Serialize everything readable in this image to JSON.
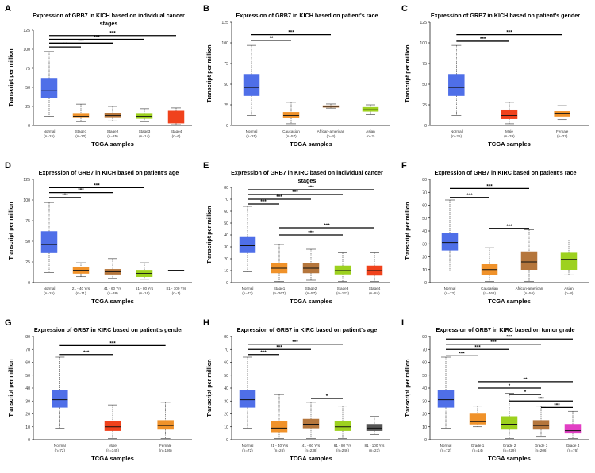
{
  "figure": {
    "colors": {
      "Normal": "#4f6fe8",
      "Stage1": "#f0922a",
      "Stage2": "#b5763c",
      "Stage3": "#9dd11f",
      "Stage4": "#f0421c",
      "Caucasian": "#f0922a",
      "African-american": "#b5763c",
      "Asian": "#9dd11f",
      "Male": "#f0421c",
      "Female": "#f0922a",
      "21 - 40 Yrs": "#f0922a",
      "41 - 60 Yrs": "#b5763c",
      "61 - 80 Yrs": "#9dd11f",
      "81 - 100 Yrs": "#555555",
      "Grade 1": "#f0922a",
      "Grade 2": "#9dd11f",
      "Grade 3": "#b5763c",
      "Grade 4": "#e23fc4"
    }
  },
  "chart_data": [
    {
      "type": "box",
      "letter": "A",
      "title": [
        "Expression of GRB7 in KICH based on individual cancer",
        "stages"
      ],
      "xlabel": "TCGA samples",
      "ylabel": "Transcript per million",
      "ylim": [
        0,
        125
      ],
      "yticks": [
        0,
        25,
        50,
        75,
        100,
        125
      ],
      "groups": [
        {
          "label": "Normal",
          "n": "(n=25)",
          "key": "Normal",
          "min": 12,
          "q1": 36,
          "median": 46,
          "q3": 62,
          "max": 97
        },
        {
          "label": "Stage1",
          "n": "(n=20)",
          "key": "Stage1",
          "min": 5,
          "q1": 10,
          "median": 12,
          "q3": 15,
          "max": 28
        },
        {
          "label": "Stage2",
          "n": "(n=25)",
          "key": "Stage2",
          "min": 6,
          "q1": 10,
          "median": 13,
          "q3": 16,
          "max": 25
        },
        {
          "label": "Stage3",
          "n": "(n=14)",
          "key": "Stage3",
          "min": 5,
          "q1": 9,
          "median": 12,
          "q3": 15,
          "max": 22
        },
        {
          "label": "Stage4",
          "n": "(n=6)",
          "key": "Stage4",
          "min": 1,
          "q1": 3,
          "median": 11,
          "q3": 19,
          "max": 23
        }
      ],
      "significance": [
        {
          "from": 0,
          "to": 1,
          "label": "**",
          "y": 103
        },
        {
          "from": 0,
          "to": 2,
          "label": "***",
          "y": 108
        },
        {
          "from": 0,
          "to": 3,
          "label": "***",
          "y": 113
        },
        {
          "from": 0,
          "to": 4,
          "label": "***",
          "y": 118
        }
      ]
    },
    {
      "type": "box",
      "letter": "B",
      "title": [
        "Expression of GRB7 in KICH based on patient's race"
      ],
      "xlabel": "TCGA samples",
      "ylabel": "Transcript per million",
      "ylim": [
        0,
        125
      ],
      "yticks": [
        0,
        25,
        50,
        75,
        100,
        125
      ],
      "groups": [
        {
          "label": "Normal",
          "n": "(n=25)",
          "key": "Normal",
          "min": 12,
          "q1": 36,
          "median": 46,
          "q3": 62,
          "max": 97
        },
        {
          "label": "Caucasian",
          "n": "(n=57)",
          "key": "Caucasian",
          "min": 2,
          "q1": 9,
          "median": 12,
          "q3": 16,
          "max": 28
        },
        {
          "label": "African-american",
          "n": "(n=4)",
          "key": "African-american",
          "min": 21,
          "q1": 22,
          "median": 23,
          "q3": 24,
          "max": 26
        },
        {
          "label": "Asian",
          "n": "(n=2)",
          "key": "Asian",
          "min": 13,
          "q1": 17,
          "median": 19,
          "q3": 22,
          "max": 25
        }
      ],
      "significance": [
        {
          "from": 0,
          "to": 1,
          "label": "**",
          "y": 103
        },
        {
          "from": 0,
          "to": 2,
          "label": "***",
          "y": 110
        }
      ]
    },
    {
      "type": "box",
      "letter": "C",
      "title": [
        "Expression of GRB7 in KICH based on patient's gender"
      ],
      "xlabel": "TCGA samples",
      "ylabel": "Transcript per million",
      "ylim": [
        0,
        125
      ],
      "yticks": [
        0,
        25,
        50,
        75,
        100,
        125
      ],
      "groups": [
        {
          "label": "Normal",
          "n": "(n=25)",
          "key": "Normal",
          "min": 12,
          "q1": 36,
          "median": 46,
          "q3": 62,
          "max": 97
        },
        {
          "label": "Male",
          "n": "(n=39)",
          "key": "Male",
          "min": 2,
          "q1": 8,
          "median": 12,
          "q3": 19,
          "max": 28
        },
        {
          "label": "Female",
          "n": "(n=27)",
          "key": "Female",
          "min": 7,
          "q1": 11,
          "median": 14,
          "q3": 17,
          "max": 24
        }
      ],
      "significance": [
        {
          "from": 0,
          "to": 1,
          "label": "***",
          "y": 102
        },
        {
          "from": 0,
          "to": 2,
          "label": "***",
          "y": 110
        }
      ]
    },
    {
      "type": "box",
      "letter": "D",
      "title": [
        "Expression of GRB7 in KICH based on patient's age"
      ],
      "xlabel": "TCGA samples",
      "ylabel": "Transcript per million",
      "ylim": [
        0,
        125
      ],
      "yticks": [
        0,
        25,
        50,
        75,
        100,
        125
      ],
      "groups": [
        {
          "label": "Normal",
          "n": "(n=25)",
          "key": "Normal",
          "min": 12,
          "q1": 36,
          "median": 46,
          "q3": 62,
          "max": 97
        },
        {
          "label": "21 - 40 Yrs",
          "n": "(n=11)",
          "key": "21 - 40 Yrs",
          "min": 7,
          "q1": 11,
          "median": 15,
          "q3": 19,
          "max": 24
        },
        {
          "label": "41 - 60 Yrs",
          "n": "(n=38)",
          "key": "41 - 60 Yrs",
          "min": 5,
          "q1": 10,
          "median": 13,
          "q3": 16,
          "max": 29
        },
        {
          "label": "61 - 80 Yrs",
          "n": "(n=16)",
          "key": "61 - 80 Yrs",
          "min": 4,
          "q1": 7,
          "median": 11,
          "q3": 15,
          "max": 24
        },
        {
          "label": "81 - 100 Yrs",
          "n": "(n=1)",
          "key": "81 - 100 Yrs",
          "min": 15,
          "q1": 15,
          "median": 15,
          "q3": 15,
          "max": 15
        }
      ],
      "significance": [
        {
          "from": 0,
          "to": 1,
          "label": "***",
          "y": 103
        },
        {
          "from": 0,
          "to": 2,
          "label": "***",
          "y": 109
        },
        {
          "from": 0,
          "to": 3,
          "label": "***",
          "y": 115
        }
      ]
    },
    {
      "type": "box",
      "letter": "E",
      "title": [
        "Expression of GRB7 in KIRC based on individual cancer",
        "stages"
      ],
      "xlabel": "TCGA samples",
      "ylabel": "Transcript per million",
      "ylim": [
        0,
        80
      ],
      "yticks": [
        0,
        10,
        20,
        30,
        40,
        50,
        60,
        70,
        80
      ],
      "groups": [
        {
          "label": "Normal",
          "n": "(n=72)",
          "key": "Normal",
          "min": 9,
          "q1": 25,
          "median": 31,
          "q3": 38,
          "max": 64
        },
        {
          "label": "Stage1",
          "n": "(n=267)",
          "key": "Stage1",
          "min": 1,
          "q1": 8,
          "median": 12,
          "q3": 16,
          "max": 32
        },
        {
          "label": "Stage2",
          "n": "(n=57)",
          "key": "Stage2",
          "min": 2,
          "q1": 8,
          "median": 12,
          "q3": 16,
          "max": 28
        },
        {
          "label": "Stage3",
          "n": "(n=123)",
          "key": "Stage3",
          "min": 1,
          "q1": 7,
          "median": 10,
          "q3": 14,
          "max": 25
        },
        {
          "label": "Stage4",
          "n": "(n=84)",
          "key": "Stage4",
          "min": 1,
          "q1": 6,
          "median": 10,
          "q3": 14,
          "max": 25
        }
      ],
      "significance": [
        {
          "from": 0,
          "to": 1,
          "label": "***",
          "y": 66
        },
        {
          "from": 0,
          "to": 2,
          "label": "***",
          "y": 70
        },
        {
          "from": 0,
          "to": 3,
          "label": "***",
          "y": 74
        },
        {
          "from": 0,
          "to": 4,
          "label": "***",
          "y": 78
        },
        {
          "from": 1,
          "to": 3,
          "label": "***",
          "y": 40
        },
        {
          "from": 1,
          "to": 4,
          "label": "***",
          "y": 46
        }
      ]
    },
    {
      "type": "box",
      "letter": "F",
      "title": [
        "Expression of GRB7 in KIRC based on patient's race"
      ],
      "xlabel": "TCGA samples",
      "ylabel": "Transcript per million",
      "ylim": [
        0,
        80
      ],
      "yticks": [
        0,
        10,
        20,
        30,
        40,
        50,
        60,
        70,
        80
      ],
      "groups": [
        {
          "label": "Normal",
          "n": "(n=72)",
          "key": "Normal",
          "min": 9,
          "q1": 25,
          "median": 31,
          "q3": 38,
          "max": 64
        },
        {
          "label": "Caucasian",
          "n": "(n=462)",
          "key": "Caucasian",
          "min": 1,
          "q1": 6,
          "median": 10,
          "q3": 14,
          "max": 27
        },
        {
          "label": "African-american",
          "n": "(n=56)",
          "key": "African-american",
          "min": 1,
          "q1": 10,
          "median": 16,
          "q3": 24,
          "max": 41
        },
        {
          "label": "Asian",
          "n": "(n=8)",
          "key": "Asian",
          "min": 6,
          "q1": 10,
          "median": 18,
          "q3": 23,
          "max": 33
        }
      ],
      "significance": [
        {
          "from": 0,
          "to": 1,
          "label": "***",
          "y": 66
        },
        {
          "from": 0,
          "to": 2,
          "label": "***",
          "y": 73
        },
        {
          "from": 1,
          "to": 2,
          "label": "***",
          "y": 42
        }
      ]
    },
    {
      "type": "box",
      "letter": "G",
      "title": [
        "Expression of GRB7 in KIRC based on patient's gender"
      ],
      "xlabel": "TCGA samples",
      "ylabel": "Transcript per million",
      "ylim": [
        0,
        80
      ],
      "yticks": [
        0,
        10,
        20,
        30,
        40,
        50,
        60,
        70,
        80
      ],
      "groups": [
        {
          "label": "Normal",
          "n": "(n=72)",
          "key": "Normal",
          "min": 9,
          "q1": 25,
          "median": 31,
          "q3": 38,
          "max": 64
        },
        {
          "label": "Male",
          "n": "(n=345)",
          "key": "Male",
          "min": 1,
          "q1": 7,
          "median": 10,
          "q3": 14,
          "max": 27
        },
        {
          "label": "Female",
          "n": "(n=186)",
          "key": "Female",
          "min": 1,
          "q1": 8,
          "median": 11,
          "q3": 15,
          "max": 29
        }
      ],
      "significance": [
        {
          "from": 0,
          "to": 1,
          "label": "***",
          "y": 66
        },
        {
          "from": 0,
          "to": 2,
          "label": "***",
          "y": 73
        }
      ]
    },
    {
      "type": "box",
      "letter": "H",
      "title": [
        "Expression of GRB7 in KIRC based on patient's age"
      ],
      "xlabel": "TCGA samples",
      "ylabel": "Transcript per million",
      "ylim": [
        0,
        80
      ],
      "yticks": [
        0,
        10,
        20,
        30,
        40,
        50,
        60,
        70,
        80
      ],
      "groups": [
        {
          "label": "Normal",
          "n": "(n=72)",
          "key": "Normal",
          "min": 9,
          "q1": 25,
          "median": 31,
          "q3": 38,
          "max": 64
        },
        {
          "label": "21 - 40 Yrs",
          "n": "(n=26)",
          "key": "21 - 40 Yrs",
          "min": 1,
          "q1": 6,
          "median": 9,
          "q3": 14,
          "max": 35
        },
        {
          "label": "41 - 60 Yrs",
          "n": "(n=238)",
          "key": "41 - 60 Yrs",
          "min": 1,
          "q1": 9,
          "median": 12,
          "q3": 16,
          "max": 29
        },
        {
          "label": "61 - 80 Yrs",
          "n": "(n=246)",
          "key": "61 - 80 Yrs",
          "min": 1,
          "q1": 7,
          "median": 10,
          "q3": 14,
          "max": 26
        },
        {
          "label": "81 - 100 Yrs",
          "n": "(n=23)",
          "key": "81 - 100 Yrs",
          "min": 4,
          "q1": 7,
          "median": 9,
          "q3": 12,
          "max": 18
        }
      ],
      "significance": [
        {
          "from": 0,
          "to": 1,
          "label": "***",
          "y": 66
        },
        {
          "from": 0,
          "to": 2,
          "label": "***",
          "y": 70
        },
        {
          "from": 0,
          "to": 3,
          "label": "***",
          "y": 74
        },
        {
          "from": 2,
          "to": 3,
          "label": "*",
          "y": 32
        }
      ]
    },
    {
      "type": "box",
      "letter": "I",
      "title": [
        "Expression of GRB7 in KIRC based on tumor grade"
      ],
      "xlabel": "TCGA samples",
      "ylabel": "Transcript per million",
      "ylim": [
        0,
        80
      ],
      "yticks": [
        0,
        10,
        20,
        30,
        40,
        50,
        60,
        70,
        80
      ],
      "groups": [
        {
          "label": "Normal",
          "n": "(n=72)",
          "key": "Normal",
          "min": 9,
          "q1": 25,
          "median": 31,
          "q3": 38,
          "max": 64
        },
        {
          "label": "Grade 1",
          "n": "(n=14)",
          "key": "Grade 1",
          "min": 10,
          "q1": 12,
          "median": 14,
          "q3": 20,
          "max": 26
        },
        {
          "label": "Grade 2",
          "n": "(n=229)",
          "key": "Grade 2",
          "min": 1,
          "q1": 8,
          "median": 12,
          "q3": 18,
          "max": 36
        },
        {
          "label": "Grade 3",
          "n": "(n=206)",
          "key": "Grade 3",
          "min": 2,
          "q1": 8,
          "median": 11,
          "q3": 15,
          "max": 26
        },
        {
          "label": "Grade 4",
          "n": "(n=76)",
          "key": "Grade 4",
          "min": 1,
          "q1": 5,
          "median": 7,
          "q3": 12,
          "max": 22
        }
      ],
      "significance": [
        {
          "from": 0,
          "to": 1,
          "label": "***",
          "y": 65
        },
        {
          "from": 0,
          "to": 2,
          "label": "***",
          "y": 70
        },
        {
          "from": 0,
          "to": 3,
          "label": "***",
          "y": 74
        },
        {
          "from": 0,
          "to": 4,
          "label": "***",
          "y": 78
        },
        {
          "from": 1,
          "to": 4,
          "label": "**",
          "y": 45
        },
        {
          "from": 1,
          "to": 3,
          "label": "*",
          "y": 40
        },
        {
          "from": 2,
          "to": 3,
          "label": "*",
          "y": 35
        },
        {
          "from": 2,
          "to": 4,
          "label": "***",
          "y": 30
        },
        {
          "from": 3,
          "to": 4,
          "label": "***",
          "y": 25
        }
      ]
    }
  ]
}
